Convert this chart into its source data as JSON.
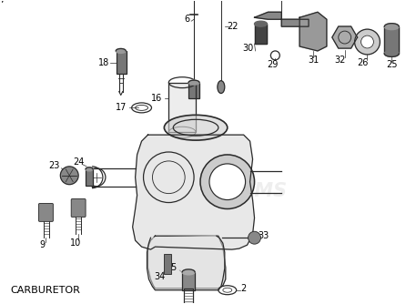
{
  "title": "CARBURETOR",
  "bg_color": "#ffffff",
  "line_color": "#2a2a2a",
  "text_color": "#000000",
  "label_fontsize": 7.0,
  "title_fontsize": 8.0,
  "fig_width": 4.46,
  "fig_height": 3.34,
  "dpi": 100
}
